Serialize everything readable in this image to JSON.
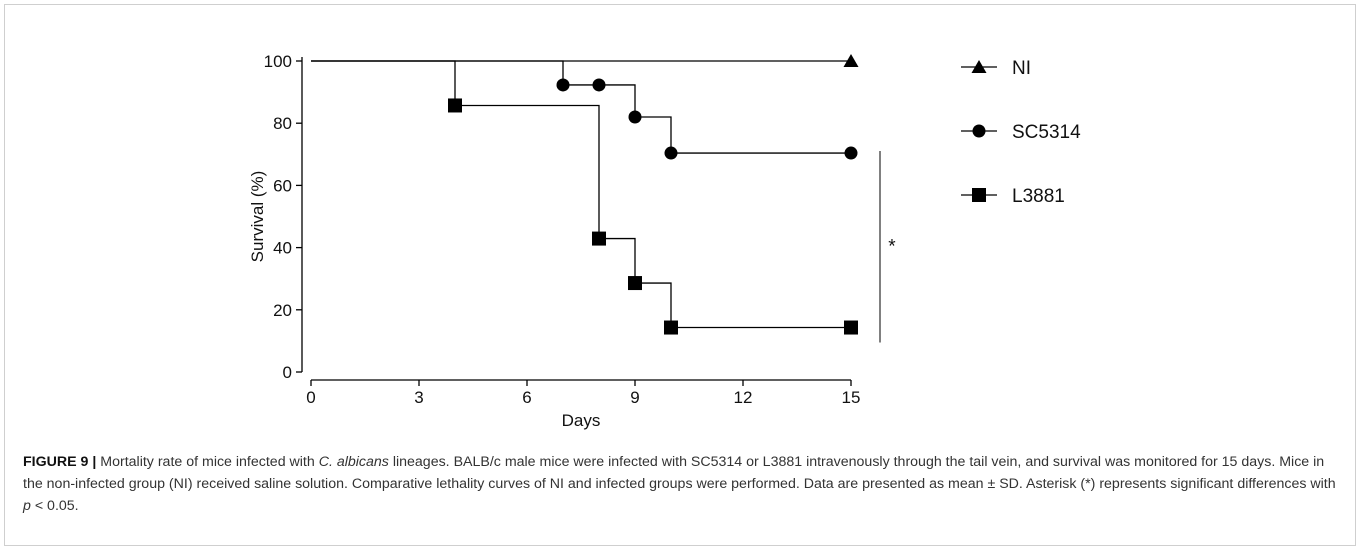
{
  "chart_data": {
    "type": "line",
    "step": true,
    "xlabel": "Days",
    "ylabel": "Survival (%)",
    "xlim": [
      0,
      15
    ],
    "ylim": [
      0,
      100
    ],
    "x_ticks": [
      0,
      3,
      6,
      9,
      12,
      15
    ],
    "y_ticks": [
      0,
      20,
      40,
      60,
      80,
      100
    ],
    "grid": false,
    "legend_position": "right",
    "series": [
      {
        "name": "NI",
        "marker": "triangle",
        "x": [
          0,
          15
        ],
        "y": [
          100,
          100
        ],
        "marked_points": [
          [
            15,
            100
          ]
        ]
      },
      {
        "name": "SC5314",
        "marker": "circle",
        "x": [
          0,
          7,
          8,
          9,
          10,
          15
        ],
        "y": [
          100,
          92.3,
          92.3,
          82,
          70.4,
          70.4
        ],
        "marked_points": [
          [
            7,
            92.3
          ],
          [
            8,
            92.3
          ],
          [
            9,
            82
          ],
          [
            10,
            70.4
          ],
          [
            15,
            70.4
          ]
        ]
      },
      {
        "name": "L3881",
        "marker": "square",
        "x": [
          0,
          4,
          8,
          9,
          10,
          15
        ],
        "y": [
          100,
          85.7,
          42.9,
          28.6,
          14.3,
          14.3
        ],
        "marked_points": [
          [
            4,
            85.7
          ],
          [
            8,
            42.9
          ],
          [
            9,
            28.6
          ],
          [
            10,
            14.3
          ],
          [
            15,
            14.3
          ]
        ]
      }
    ],
    "annotations": [
      {
        "text": "*",
        "type": "significance-bracket",
        "between": [
          "SC5314",
          "L3881"
        ]
      }
    ]
  },
  "caption": {
    "figure_label": "FIGURE 9 |",
    "part1": " Mortality rate of mice infected with ",
    "species": "C. albicans",
    "part2": " lineages. BALB/c male mice were infected with SC5314 or L3881 intravenously through the tail vein, and survival was monitored for 15 days. Mice in the non-infected group (NI) received saline solution. Comparative lethality curves of NI and infected groups were performed. Data are presented as mean ± SD. Asterisk (*) represents significant differences with ",
    "p_symbol": "p",
    "part3": " < 0.05."
  }
}
